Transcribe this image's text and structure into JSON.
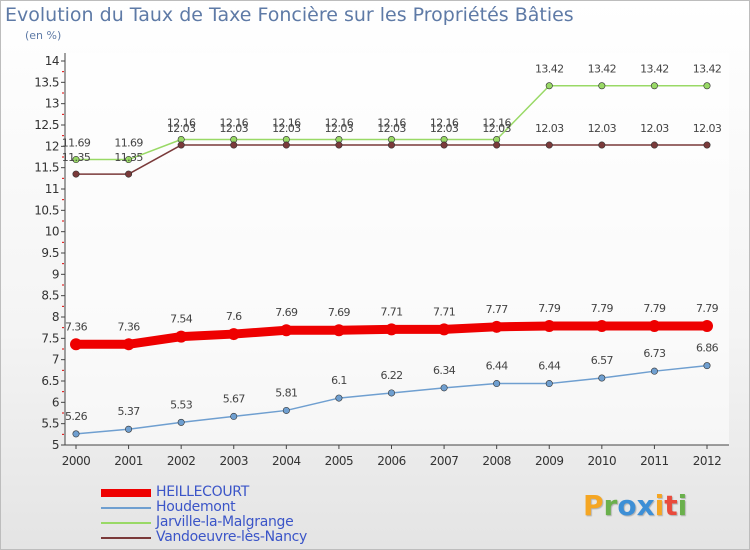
{
  "chart_data": {
    "type": "line",
    "title": "Evolution du Taux de Taxe Foncière sur les Propriétés Bâties",
    "ylabel": "(en %)",
    "xlabel": "",
    "ylim": [
      5,
      14
    ],
    "yticks": [
      "5",
      "5.5",
      "6",
      "6.5",
      "7",
      "7.5",
      "8",
      "8.5",
      "9",
      "9.5",
      "10",
      "10.5",
      "11",
      "11.5",
      "12",
      "12.5",
      "13",
      "13.5",
      "14"
    ],
    "categories": [
      "2000",
      "2001",
      "2002",
      "2003",
      "2004",
      "2005",
      "2006",
      "2007",
      "2008",
      "2009",
      "2010",
      "2011",
      "2012"
    ],
    "series": [
      {
        "name": "HEILLECOURT",
        "color": "#ee0000",
        "values": [
          7.36,
          7.36,
          7.54,
          7.6,
          7.69,
          7.69,
          7.71,
          7.71,
          7.77,
          7.79,
          7.79,
          7.79,
          7.79
        ],
        "labels": [
          "7.36",
          "7.36",
          "7.54",
          "7.6",
          "7.69",
          "7.69",
          "7.71",
          "7.71",
          "7.77",
          "7.79",
          "7.79",
          "7.79",
          "7.79"
        ]
      },
      {
        "name": "Houdemont",
        "color": "#6f9fd0",
        "values": [
          5.26,
          5.37,
          5.53,
          5.67,
          5.81,
          6.1,
          6.22,
          6.34,
          6.44,
          6.44,
          6.57,
          6.73,
          6.86
        ],
        "labels": [
          "5.26",
          "5.37",
          "5.53",
          "5.67",
          "5.81",
          "6.1",
          "6.22",
          "6.34",
          "6.44",
          "6.44",
          "6.57",
          "6.73",
          "6.86"
        ]
      },
      {
        "name": "Jarville-la-Malgrange",
        "color": "#99d966",
        "values": [
          11.69,
          11.69,
          12.16,
          12.16,
          12.16,
          12.16,
          12.16,
          12.16,
          12.16,
          13.42,
          13.42,
          13.42,
          13.42
        ],
        "labels": [
          "11.69",
          "11.69",
          "12.16",
          "12.16",
          "12.16",
          "12.16",
          "12.16",
          "12.16",
          "12.16",
          "13.42",
          "13.42",
          "13.42",
          "13.42"
        ]
      },
      {
        "name": "Vandoeuvre-lès-Nancy",
        "color": "#7a3a3a",
        "values": [
          11.35,
          11.35,
          12.03,
          12.03,
          12.03,
          12.03,
          12.03,
          12.03,
          12.03,
          12.03,
          12.03,
          12.03,
          12.03
        ],
        "labels": [
          "11.35",
          "11.35",
          "12.03",
          "12.03",
          "12.03",
          "12.03",
          "12.03",
          "12.03",
          "12.03",
          "12.03",
          "12.03",
          "12.03",
          "12.03"
        ]
      }
    ],
    "legend": {
      "placement": "bottom-left"
    }
  },
  "logo": {
    "letters": [
      "P",
      "r",
      "o",
      "x",
      "i",
      "t",
      "i"
    ],
    "colors": [
      "#f5a623",
      "#6ab04c",
      "#3d8fd6",
      "#3d8fd6",
      "#f5a623",
      "#e94b3c",
      "#6ab04c"
    ]
  }
}
